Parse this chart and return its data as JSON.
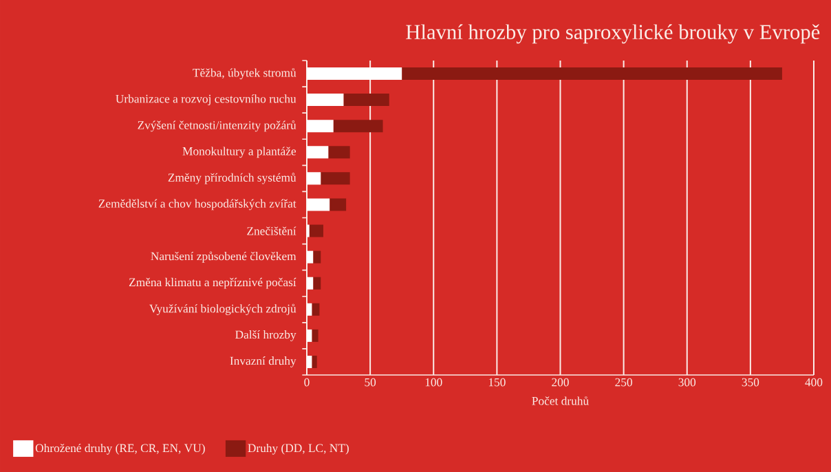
{
  "chart_data": {
    "type": "bar",
    "orientation": "horizontal",
    "stacked": true,
    "title": "Hlavní hrozby pro saproxylické brouky v Evropě",
    "xlabel": "Počet druhů",
    "categories": [
      "Těžba, úbytek stromů",
      "Urbanizace a rozvoj cestovního ruchu",
      "Zvýšení četnosti/intenzity požárů",
      "Monokultury a plantáže",
      "Změny přírodních systémů",
      "Zemědělství a chov hospodářských zvířat",
      "Znečištění",
      "Narušení způsobené člověkem",
      "Změna klimatu a nepříznivé počasí",
      "Využívání biologických zdrojů",
      "Další hrozby",
      "Invazní druhy"
    ],
    "series": [
      {
        "name": "Ohrožené druhy (RE, CR, EN, VU)",
        "color": "#ffffff",
        "values": [
          75,
          29,
          21,
          17,
          11,
          18,
          2,
          5,
          5,
          4,
          4,
          4
        ]
      },
      {
        "name": "Druhy (DD, LC, NT)",
        "color": "#8b1a12",
        "values": [
          300,
          36,
          39,
          17,
          23,
          13,
          11,
          6,
          6,
          6,
          5,
          4
        ]
      }
    ],
    "xlim": [
      0,
      400
    ],
    "xticks": [
      0,
      50,
      100,
      150,
      200,
      250,
      300,
      350,
      400
    ],
    "grid": "x",
    "legend": "bottom left"
  }
}
